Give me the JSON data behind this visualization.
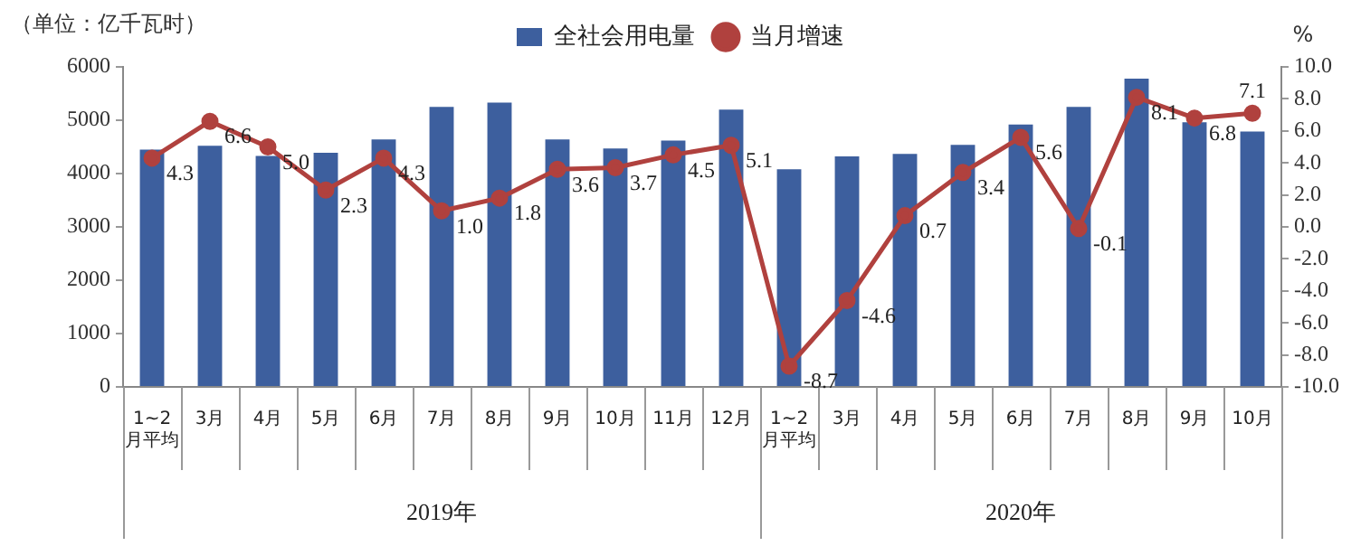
{
  "chart_data": {
    "type": "bar",
    "ylabel": "（单位：亿千瓦时）",
    "y2label": "%",
    "categories": [
      "1~2月平均",
      "3月",
      "4月",
      "5月",
      "6月",
      "7月",
      "8月",
      "9月",
      "10月",
      "11月",
      "12月",
      "1~2月平均",
      "3月",
      "4月",
      "5月",
      "6月",
      "7月",
      "8月",
      "9月",
      "10月"
    ],
    "series": [
      {
        "name": "全社会用电量",
        "color": "#3d5f9e",
        "values": [
          4450,
          4520,
          4330,
          4390,
          4640,
          5250,
          5330,
          4640,
          4470,
          4620,
          5200,
          4080,
          4320,
          4370,
          4540,
          4920,
          5250,
          5780,
          4960,
          4790
        ]
      },
      {
        "name": "当月增速",
        "type": "line",
        "axis": "y2",
        "color": "#b0413e",
        "marker": "circle",
        "values": [
          4.3,
          6.6,
          5.0,
          2.3,
          4.3,
          1.0,
          1.8,
          3.6,
          3.7,
          4.5,
          5.1,
          -8.7,
          -4.6,
          0.7,
          3.4,
          5.6,
          -0.1,
          8.1,
          6.8,
          7.1
        ],
        "value_labels": [
          "4.3",
          "6.6",
          "5.0",
          "2.3",
          "4.3",
          "1.0",
          "1.8",
          "3.6",
          "3.7",
          "4.5",
          "5.1",
          "-8.7",
          "-4.6",
          "0.7",
          "3.4",
          "5.6",
          "-0.1",
          "8.1",
          "6.8",
          "7.1"
        ]
      }
    ],
    "ylim": [
      0,
      6000
    ],
    "yticks": [
      0,
      1000,
      2000,
      3000,
      4000,
      5000,
      6000
    ],
    "y2lim": [
      -10,
      10
    ],
    "y2ticks": [
      {
        "value": -10,
        "label": "-10.0"
      },
      {
        "value": -8,
        "label": "-8.0"
      },
      {
        "value": -6,
        "label": "-6.0"
      },
      {
        "value": -4,
        "label": "-4.0"
      },
      {
        "value": -2,
        "label": "-2.0"
      },
      {
        "value": 0,
        "label": "0.0"
      },
      {
        "value": 2,
        "label": "2.0"
      },
      {
        "value": 4,
        "label": "4.0"
      },
      {
        "value": 6,
        "label": "6.0"
      },
      {
        "value": 8,
        "label": "8.0"
      },
      {
        "value": 10,
        "label": "10.0"
      }
    ],
    "annotations": [
      "2019年",
      "2020年"
    ],
    "grid": false,
    "legend": "top"
  }
}
